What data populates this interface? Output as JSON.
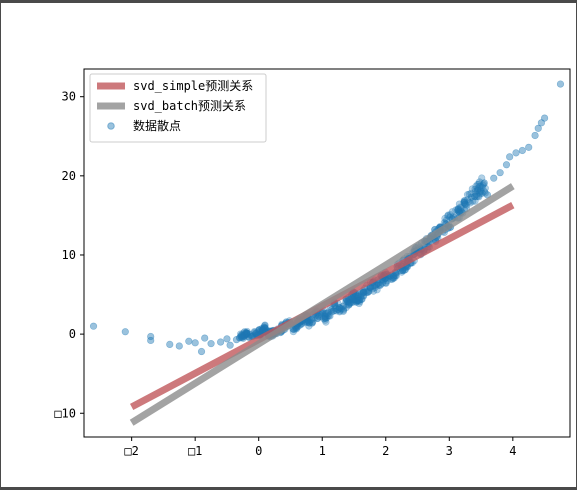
{
  "chart_data": {
    "type": "scatter",
    "title": "",
    "xlabel": "",
    "ylabel": "",
    "xlim": [
      -2.75,
      4.9
    ],
    "ylim": [
      -13,
      33.5
    ],
    "x_ticks": [
      {
        "value": -2,
        "label": "□2"
      },
      {
        "value": -1,
        "label": "□1"
      },
      {
        "value": 0,
        "label": "0"
      },
      {
        "value": 1,
        "label": "1"
      },
      {
        "value": 2,
        "label": "2"
      },
      {
        "value": 3,
        "label": "3"
      },
      {
        "value": 4,
        "label": "4"
      }
    ],
    "y_ticks": [
      {
        "value": -10,
        "label": "□10"
      },
      {
        "value": 0,
        "label": "0"
      },
      {
        "value": 10,
        "label": "10"
      },
      {
        "value": 20,
        "label": "20"
      },
      {
        "value": 30,
        "label": "30"
      }
    ],
    "grid": false,
    "legend_position": "top-left",
    "series": [
      {
        "name": "svd_simple预测关系",
        "kind": "line",
        "color": "#c0585b",
        "alpha": 0.8,
        "points": [
          [
            -2,
            -9.2
          ],
          [
            4,
            16.3
          ]
        ]
      },
      {
        "name": "svd_batch预测关系",
        "kind": "line",
        "color": "#8c8c8c",
        "alpha": 0.8,
        "points": [
          [
            -2,
            -11.2
          ],
          [
            4,
            18.7
          ]
        ]
      },
      {
        "name": "数据散点",
        "kind": "scatter",
        "color": "#1f77b4",
        "alpha": 0.45,
        "points": [
          [
            -2.6,
            1.0
          ],
          [
            -2.1,
            0.3
          ],
          [
            -1.7,
            -0.8
          ],
          [
            -1.7,
            -0.3
          ],
          [
            -1.4,
            -1.3
          ],
          [
            -1.25,
            -1.5
          ],
          [
            -1.1,
            -0.9
          ],
          [
            -1.0,
            -1.1
          ],
          [
            -0.9,
            -2.2
          ],
          [
            -0.85,
            -0.5
          ],
          [
            -0.75,
            -1.2
          ],
          [
            -0.6,
            -1.0
          ],
          [
            -0.5,
            -0.6
          ],
          [
            -0.45,
            -1.4
          ],
          [
            -0.35,
            -0.7
          ],
          [
            -0.25,
            -0.2
          ],
          [
            -0.2,
            0.2
          ],
          [
            -0.15,
            -0.4
          ],
          [
            -0.05,
            0.1
          ],
          [
            0.05,
            0.3
          ],
          [
            0.1,
            0.8
          ],
          [
            0.15,
            0.0
          ],
          [
            0.3,
            0.4
          ],
          [
            0.4,
            1.0
          ],
          [
            0.5,
            1.3
          ],
          [
            0.55,
            0.6
          ],
          [
            0.65,
            1.5
          ],
          [
            0.75,
            2.0
          ],
          [
            0.8,
            1.4
          ],
          [
            0.9,
            2.4
          ],
          [
            1.0,
            2.8
          ],
          [
            1.05,
            2.0
          ],
          [
            1.15,
            3.1
          ],
          [
            1.2,
            3.6
          ],
          [
            1.3,
            3.2
          ],
          [
            1.4,
            4.1
          ],
          [
            1.5,
            4.8
          ],
          [
            1.55,
            4.2
          ],
          [
            1.65,
            5.3
          ],
          [
            1.75,
            5.9
          ],
          [
            1.85,
            6.2
          ],
          [
            1.95,
            6.9
          ],
          [
            2.05,
            7.4
          ],
          [
            2.15,
            7.8
          ],
          [
            2.25,
            8.6
          ],
          [
            2.35,
            9.2
          ],
          [
            2.45,
            10.1
          ],
          [
            2.55,
            10.7
          ],
          [
            2.65,
            11.4
          ],
          [
            2.75,
            12.3
          ],
          [
            2.85,
            13.0
          ],
          [
            2.95,
            13.9
          ],
          [
            3.05,
            14.6
          ],
          [
            3.15,
            15.5
          ],
          [
            3.25,
            16.4
          ],
          [
            3.35,
            17.3
          ],
          [
            3.45,
            18.2
          ],
          [
            3.55,
            19.1
          ],
          [
            3.6,
            17.6
          ],
          [
            3.7,
            19.7
          ],
          [
            3.8,
            20.4
          ],
          [
            3.9,
            21.4
          ],
          [
            3.95,
            22.4
          ],
          [
            4.05,
            22.9
          ],
          [
            4.15,
            23.2
          ],
          [
            4.25,
            23.6
          ],
          [
            4.35,
            25.1
          ],
          [
            4.4,
            26.0
          ],
          [
            4.45,
            26.7
          ],
          [
            4.5,
            27.3
          ],
          [
            4.75,
            31.6
          ]
        ]
      }
    ]
  }
}
